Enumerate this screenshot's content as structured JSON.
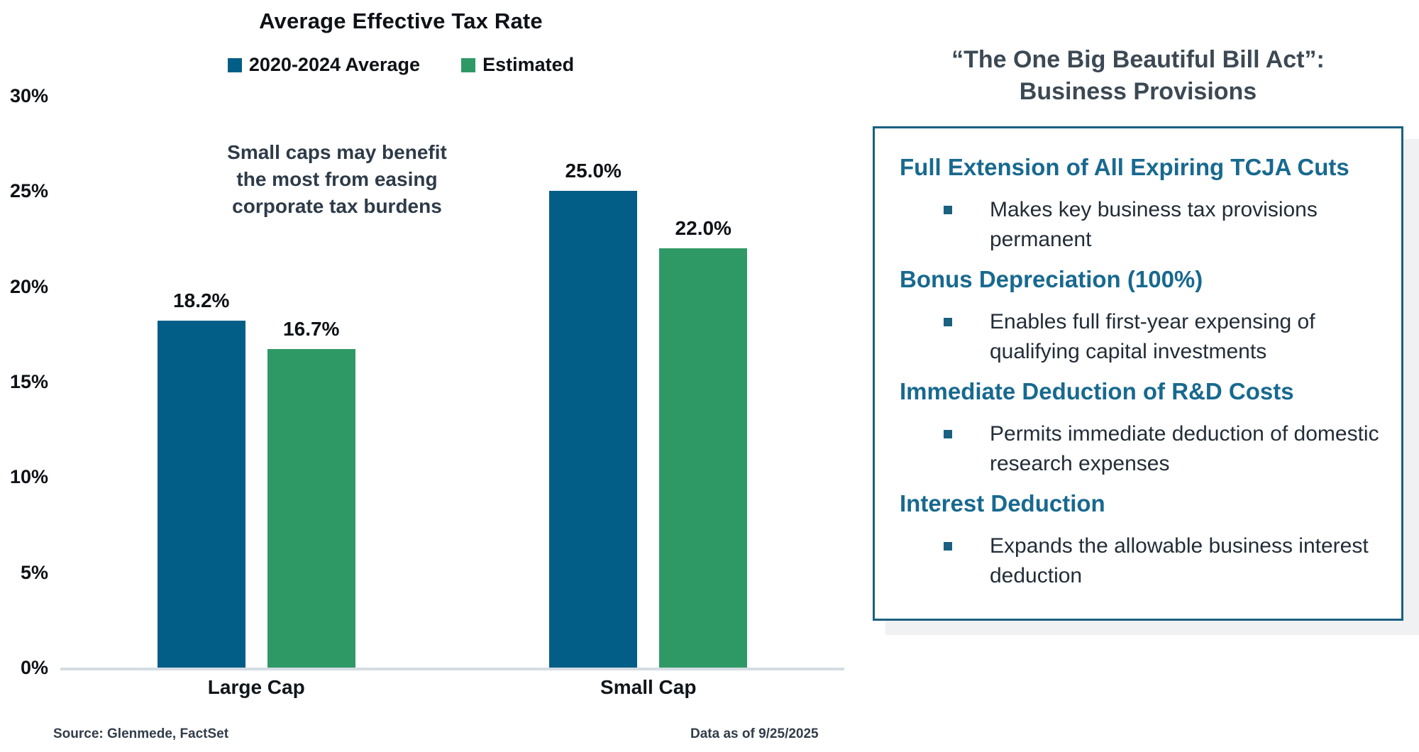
{
  "chart_data": {
    "type": "bar",
    "title": "Average Effective Tax Rate",
    "categories": [
      "Large Cap",
      "Small Cap"
    ],
    "series": [
      {
        "name": "2020-2024 Average",
        "color": "#025E86",
        "values": [
          18.2,
          25.0
        ],
        "labels": [
          "18.2%",
          "25.0%"
        ]
      },
      {
        "name": "Estimated",
        "color": "#2F9966",
        "values": [
          16.7,
          22.0
        ],
        "labels": [
          "16.7%",
          "22.0%"
        ]
      }
    ],
    "ylim": [
      0,
      30
    ],
    "yticks": [
      "0%",
      "5%",
      "10%",
      "15%",
      "20%",
      "25%",
      "30%"
    ],
    "grid": false,
    "legend_position": "top"
  },
  "chart": {
    "annotation": "Small caps may benefit\nthe most from easing\ncorporate tax burdens",
    "source": "Source: Glenmede, FactSet",
    "data_as_of": "Data as of 9/25/2025"
  },
  "panel": {
    "title_line1": "“The One Big Beautiful Bill Act”:",
    "title_line2": "Business Provisions",
    "sections": [
      {
        "heading": "Full Extension of All Expiring TCJA Cuts",
        "bullet": "Makes key business tax provisions\npermanent"
      },
      {
        "heading": "Bonus Depreciation (100%)",
        "bullet": "Enables full first-year expensing of\nqualifying capital investments"
      },
      {
        "heading": "Immediate Deduction of R&D Costs",
        "bullet": "Permits immediate deduction of domestic\nresearch expenses"
      },
      {
        "heading": "Interest Deduction",
        "bullet": "Expands the allowable business interest\ndeduction"
      }
    ]
  },
  "colors": {
    "bar_blue": "#025E86",
    "bar_green": "#2F9966",
    "heading_teal": "#18698F",
    "slate_text": "#2E3B48",
    "axis_line": "#D5DDE3",
    "card_border": "#1A6080",
    "shadow": "#F0F1F2"
  }
}
